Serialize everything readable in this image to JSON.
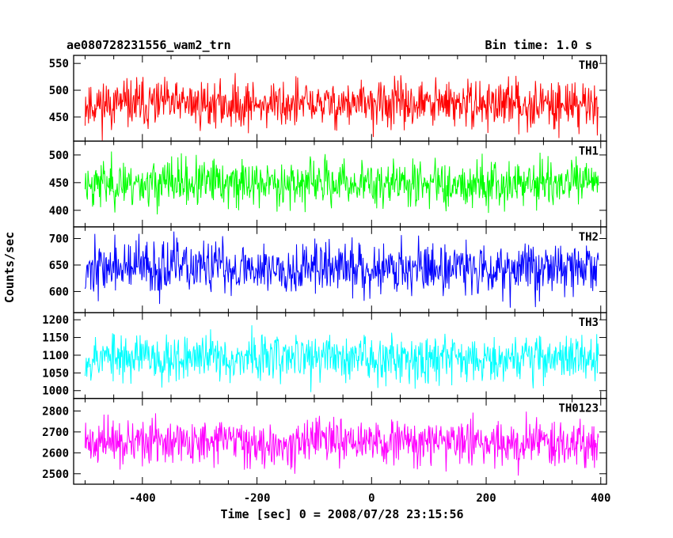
{
  "title_left": "ae080728231556_wam2_trn",
  "title_right": "Bin time: 1.0 s",
  "chart_data": {
    "type": "line",
    "xlabel": "Time [sec] 0 = 2008/07/28 23:15:56",
    "ylabel": "Counts/sec",
    "xlim": [
      -520,
      410
    ],
    "xticks": [
      -400,
      -200,
      0,
      200,
      400
    ],
    "x_range": [
      -500,
      396
    ],
    "x_step": 1,
    "panels": [
      {
        "label": "TH0",
        "color": "#ff0000",
        "ylim": [
          405,
          565
        ],
        "yticks": [
          450,
          500,
          550
        ],
        "mean": 474,
        "sigma": 22,
        "seed": 11
      },
      {
        "label": "TH1",
        "color": "#00ff00",
        "ylim": [
          370,
          525
        ],
        "yticks": [
          400,
          450,
          500
        ],
        "mean": 449,
        "sigma": 21,
        "seed": 23
      },
      {
        "label": "TH2",
        "color": "#0000ff",
        "ylim": [
          560,
          722
        ],
        "yticks": [
          600,
          650,
          700
        ],
        "mean": 645,
        "sigma": 25,
        "seed": 37
      },
      {
        "label": "TH3",
        "color": "#00ffff",
        "ylim": [
          978,
          1220
        ],
        "yticks": [
          1000,
          1050,
          1100,
          1150,
          1200
        ],
        "mean": 1094,
        "sigma": 33,
        "seed": 53
      },
      {
        "label": "TH0123",
        "color": "#ff00ff",
        "ylim": [
          2450,
          2860
        ],
        "yticks": [
          2500,
          2600,
          2700,
          2800
        ],
        "mean": 2650,
        "sigma": 52,
        "seed": 71
      }
    ]
  }
}
